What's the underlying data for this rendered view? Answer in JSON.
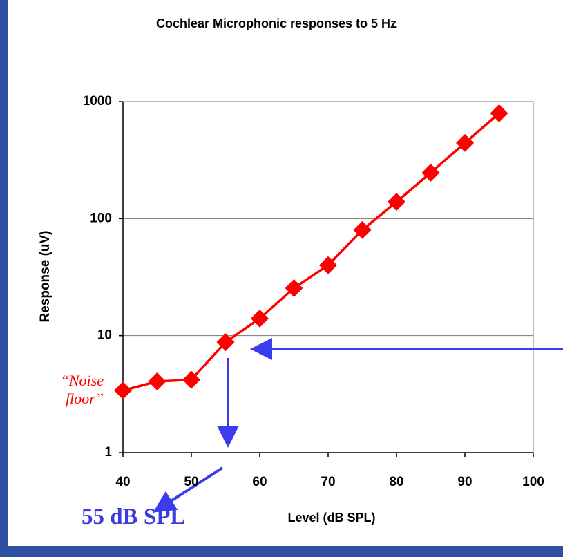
{
  "chart_data": {
    "type": "line",
    "title": "Cochlear Microphonic responses to 5 Hz",
    "x_label": "Level (dB SPL)",
    "y_label": "Response (uV)",
    "x": [
      40,
      45,
      50,
      55,
      60,
      65,
      70,
      75,
      80,
      85,
      90,
      95
    ],
    "series": [
      {
        "name": "Response",
        "color": "#ff0000",
        "values": [
          3.4,
          4.06,
          4.2,
          8.8,
          14,
          25.5,
          40,
          80,
          139,
          247,
          443,
          795
        ]
      }
    ],
    "xlim": [
      40,
      100
    ],
    "xticks": [
      40,
      50,
      60,
      70,
      80,
      90,
      100
    ],
    "ylim": [
      1,
      1000
    ],
    "yticks": [
      1,
      10,
      100,
      1000
    ],
    "yscale": "log",
    "grid": true,
    "annotations": [
      "“Noise floor”",
      "55 dB SPL"
    ]
  }
}
